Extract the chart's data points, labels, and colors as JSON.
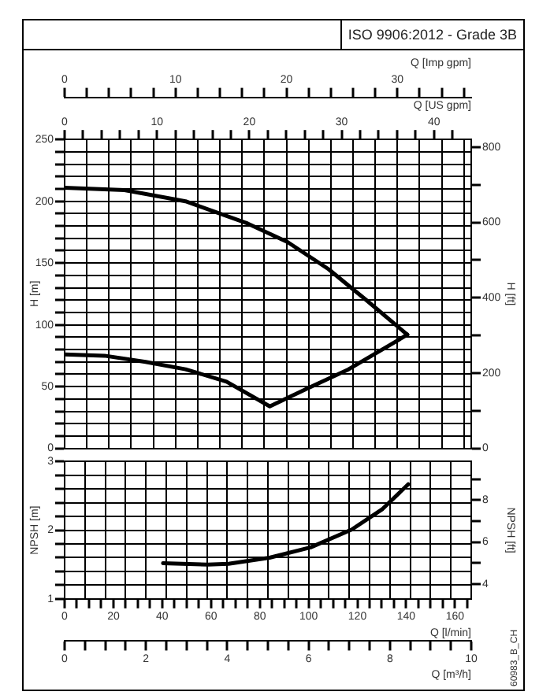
{
  "chart_data": [
    {
      "type": "line",
      "annotations": [
        "ISO 9906:2012 - Grade 3B"
      ],
      "xlabel": "Q [Imp gpm]",
      "ylabel": "H [m]",
      "y2label": "H [ft]",
      "x2label": "Q [US gpm]",
      "grid": true,
      "legend": false,
      "marker": "none",
      "x": [
        0,
        5.4,
        10.9,
        16.5,
        20.1,
        23.8,
        25.7,
        27.2,
        30.9
      ],
      "xlim": [
        0,
        36.66
      ],
      "xticks": [
        0,
        {
          "value": 2,
          "label": null
        },
        {
          "value": 4,
          "label": null
        },
        {
          "value": 6,
          "label": null
        },
        {
          "value": 8,
          "label": null
        },
        10,
        {
          "value": 12,
          "label": null
        },
        {
          "value": 14,
          "label": null
        },
        {
          "value": 16,
          "label": null
        },
        {
          "value": 18,
          "label": null
        },
        20,
        {
          "value": 22,
          "label": null
        },
        {
          "value": 24,
          "label": null
        },
        {
          "value": 26,
          "label": null
        },
        {
          "value": 28,
          "label": null
        },
        30,
        {
          "value": 32,
          "label": null
        },
        {
          "value": 34,
          "label": null
        },
        {
          "value": 36,
          "label": null
        }
      ],
      "x2lim": [
        0,
        44.03
      ],
      "x2ticks": [
        0,
        {
          "value": 2,
          "label": null
        },
        {
          "value": 4,
          "label": null
        },
        {
          "value": 6,
          "label": null
        },
        {
          "value": 8,
          "label": null
        },
        10,
        {
          "value": 12,
          "label": null
        },
        {
          "value": 14,
          "label": null
        },
        {
          "value": 16,
          "label": null
        },
        {
          "value": 18,
          "label": null
        },
        20,
        {
          "value": 22,
          "label": null
        },
        {
          "value": 24,
          "label": null
        },
        {
          "value": 26,
          "label": null
        },
        {
          "value": 28,
          "label": null
        },
        30,
        {
          "value": 32,
          "label": null
        },
        {
          "value": 34,
          "label": null
        },
        {
          "value": 36,
          "label": null
        },
        {
          "value": 38,
          "label": null
        },
        40,
        {
          "value": 42,
          "label": null
        }
      ],
      "ylim": [
        0,
        250
      ],
      "yticks": [
        0,
        {
          "value": 10,
          "label": null
        },
        {
          "value": 20,
          "label": null
        },
        {
          "value": 30,
          "label": null
        },
        {
          "value": 40,
          "label": null
        },
        50,
        {
          "value": 60,
          "label": null
        },
        {
          "value": 70,
          "label": null
        },
        {
          "value": 80,
          "label": null
        },
        {
          "value": 90,
          "label": null
        },
        100,
        {
          "value": 110,
          "label": null
        },
        {
          "value": 120,
          "label": null
        },
        {
          "value": 130,
          "label": null
        },
        {
          "value": 140,
          "label": null
        },
        150,
        {
          "value": 160,
          "label": null
        },
        {
          "value": 170,
          "label": null
        },
        {
          "value": 180,
          "label": null
        },
        {
          "value": 190,
          "label": null
        },
        200,
        {
          "value": 210,
          "label": null
        },
        {
          "value": 220,
          "label": null
        },
        {
          "value": 230,
          "label": null
        },
        {
          "value": 240,
          "label": null
        },
        250
      ],
      "y2lim": [
        0,
        820.2
      ],
      "y2ticks": [
        0,
        {
          "value": 100,
          "label": null
        },
        200,
        {
          "value": 300,
          "label": null
        },
        400,
        {
          "value": 500,
          "label": null
        },
        600,
        {
          "value": 700,
          "label": null
        },
        800
      ],
      "series": [
        {
          "color": "#000000",
          "values": [
            211,
            209,
            200,
            182,
            167,
            145,
            131,
            120,
            92
          ]
        },
        {
          "color": "#000000",
          "x": [
            0,
            3.6,
            7.3,
            10.9,
            14.6,
            18.5,
            22.0,
            25.6,
            30.9
          ],
          "values": [
            76,
            75,
            70,
            64,
            54,
            34,
            49,
            64,
            92
          ]
        }
      ]
    },
    {
      "type": "line",
      "annotations": [
        "60983_B_CH"
      ],
      "ylabel": "NPSH [m]",
      "y2label": "NPSH [ft]",
      "xlabel": "Q [m³/h]",
      "x2label": "Q [l/min]",
      "grid": true,
      "legend": false,
      "marker": "none",
      "x": [
        2.42,
        3.52,
        4.03,
        5.04,
        6.05,
        7.06,
        7.82,
        8.45
      ],
      "xlim": [
        0,
        10
      ],
      "xticks": [
        0,
        {
          "value": 0.5,
          "label": null
        },
        {
          "value": 1,
          "label": null
        },
        {
          "value": 1.5,
          "label": null
        },
        2,
        {
          "value": 2.5,
          "label": null
        },
        {
          "value": 3,
          "label": null
        },
        {
          "value": 3.5,
          "label": null
        },
        4,
        {
          "value": 4.5,
          "label": null
        },
        {
          "value": 5,
          "label": null
        },
        {
          "value": 5.5,
          "label": null
        },
        6,
        {
          "value": 6.5,
          "label": null
        },
        {
          "value": 7,
          "label": null
        },
        {
          "value": 7.5,
          "label": null
        },
        8,
        {
          "value": 8.5,
          "label": null
        },
        {
          "value": 9,
          "label": null
        },
        {
          "value": 9.5,
          "label": null
        },
        10
      ],
      "x2lim": [
        0,
        166.67
      ],
      "x2ticks": [
        0,
        {
          "value": 5,
          "label": null
        },
        {
          "value": 10,
          "label": null
        },
        {
          "value": 15,
          "label": null
        },
        20,
        {
          "value": 25,
          "label": null
        },
        {
          "value": 30,
          "label": null
        },
        {
          "value": 35,
          "label": null
        },
        40,
        {
          "value": 45,
          "label": null
        },
        {
          "value": 50,
          "label": null
        },
        {
          "value": 55,
          "label": null
        },
        60,
        {
          "value": 65,
          "label": null
        },
        {
          "value": 70,
          "label": null
        },
        {
          "value": 75,
          "label": null
        },
        80,
        {
          "value": 85,
          "label": null
        },
        {
          "value": 90,
          "label": null
        },
        {
          "value": 95,
          "label": null
        },
        100,
        {
          "value": 105,
          "label": null
        },
        {
          "value": 110,
          "label": null
        },
        {
          "value": 115,
          "label": null
        },
        120,
        {
          "value": 125,
          "label": null
        },
        {
          "value": 130,
          "label": null
        },
        {
          "value": 135,
          "label": null
        },
        140,
        {
          "value": 145,
          "label": null
        },
        {
          "value": 150,
          "label": null
        },
        {
          "value": 155,
          "label": null
        },
        160,
        {
          "value": 165,
          "label": null
        }
      ],
      "ylim": [
        1,
        3
      ],
      "yticks": [
        1,
        {
          "value": 1.2,
          "label": null
        },
        {
          "value": 1.4,
          "label": null
        },
        {
          "value": 1.6,
          "label": null
        },
        {
          "value": 1.8,
          "label": null
        },
        2,
        {
          "value": 2.2,
          "label": null
        },
        {
          "value": 2.4,
          "label": null
        },
        {
          "value": 2.6,
          "label": null
        },
        {
          "value": 2.8,
          "label": null
        },
        3
      ],
      "y2lim": [
        3.281,
        9.843
      ],
      "y2ticks": [
        4,
        {
          "value": 5,
          "label": null
        },
        6,
        {
          "value": 7,
          "label": null
        },
        8,
        {
          "value": 9,
          "label": null
        }
      ],
      "series": [
        {
          "color": "#000000",
          "values": [
            1.52,
            1.5,
            1.51,
            1.6,
            1.75,
            2.01,
            2.31,
            2.67
          ]
        }
      ]
    }
  ]
}
